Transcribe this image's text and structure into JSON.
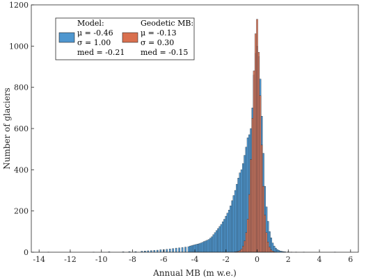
{
  "chart_data": {
    "type": "bar",
    "xlabel": "Annual MB (m w.e.)",
    "ylabel": "Number of glaciers",
    "xlim": [
      -14.5,
      6.5
    ],
    "ylim": [
      0,
      1200
    ],
    "xticks": [
      -14,
      -12,
      -10,
      -8,
      -6,
      -4,
      -2,
      0,
      2,
      4,
      6
    ],
    "yticks": [
      0,
      200,
      400,
      600,
      800,
      1000,
      1200
    ],
    "grid": false,
    "legend_position": "top-left",
    "bin_width": 0.1,
    "series": [
      {
        "name": "Model:",
        "color": "#4f97cf",
        "stats": [
          "μ = -0.46",
          "σ = 1.00",
          "med = -0.21"
        ],
        "bins": [
          [
            -13.4,
            1
          ],
          [
            -12.0,
            1
          ],
          [
            -10.5,
            1
          ],
          [
            -9.5,
            2
          ],
          [
            -8.6,
            2
          ],
          [
            -8.2,
            3
          ],
          [
            -7.8,
            3
          ],
          [
            -7.4,
            5
          ],
          [
            -7.2,
            6
          ],
          [
            -7.0,
            7
          ],
          [
            -6.8,
            8
          ],
          [
            -6.6,
            9
          ],
          [
            -6.4,
            10
          ],
          [
            -6.2,
            12
          ],
          [
            -6.0,
            13
          ],
          [
            -5.8,
            14
          ],
          [
            -5.6,
            16
          ],
          [
            -5.4,
            18
          ],
          [
            -5.2,
            20
          ],
          [
            -5.0,
            21
          ],
          [
            -4.8,
            23
          ],
          [
            -4.6,
            25
          ],
          [
            -4.4,
            27
          ],
          [
            -4.3,
            30
          ],
          [
            -4.2,
            32
          ],
          [
            -4.1,
            34
          ],
          [
            -4.0,
            36
          ],
          [
            -3.9,
            38
          ],
          [
            -3.8,
            40
          ],
          [
            -3.7,
            42
          ],
          [
            -3.6,
            45
          ],
          [
            -3.5,
            48
          ],
          [
            -3.4,
            52
          ],
          [
            -3.3,
            55
          ],
          [
            -3.2,
            58
          ],
          [
            -3.1,
            62
          ],
          [
            -3.0,
            68
          ],
          [
            -2.9,
            75
          ],
          [
            -2.8,
            85
          ],
          [
            -2.7,
            95
          ],
          [
            -2.6,
            105
          ],
          [
            -2.5,
            115
          ],
          [
            -2.4,
            125
          ],
          [
            -2.3,
            135
          ],
          [
            -2.2,
            148
          ],
          [
            -2.1,
            160
          ],
          [
            -2.0,
            175
          ],
          [
            -1.9,
            190
          ],
          [
            -1.8,
            205
          ],
          [
            -1.7,
            225
          ],
          [
            -1.6,
            250
          ],
          [
            -1.5,
            275
          ],
          [
            -1.4,
            300
          ],
          [
            -1.3,
            330
          ],
          [
            -1.2,
            360
          ],
          [
            -1.1,
            385
          ],
          [
            -1.0,
            400
          ],
          [
            -0.9,
            430
          ],
          [
            -0.8,
            470
          ],
          [
            -0.7,
            510
          ],
          [
            -0.6,
            555
          ],
          [
            -0.5,
            570
          ],
          [
            -0.4,
            600
          ],
          [
            -0.3,
            700
          ],
          [
            -0.2,
            860
          ],
          [
            -0.1,
            965
          ],
          [
            0.0,
            1000
          ],
          [
            0.1,
            950
          ],
          [
            0.2,
            840
          ],
          [
            0.3,
            660
          ],
          [
            0.4,
            480
          ],
          [
            0.5,
            320
          ],
          [
            0.6,
            220
          ],
          [
            0.7,
            150
          ],
          [
            0.8,
            100
          ],
          [
            0.9,
            70
          ],
          [
            1.0,
            45
          ],
          [
            1.1,
            30
          ],
          [
            1.2,
            20
          ],
          [
            1.3,
            13
          ],
          [
            1.4,
            9
          ],
          [
            1.5,
            6
          ],
          [
            1.6,
            4
          ],
          [
            1.7,
            3
          ],
          [
            1.8,
            2
          ],
          [
            2.0,
            2
          ],
          [
            2.2,
            1
          ],
          [
            2.5,
            1
          ],
          [
            3.0,
            1
          ],
          [
            5.0,
            1
          ]
        ]
      },
      {
        "name": "Geodetic MB:",
        "color": "#d9704f",
        "stats": [
          "μ = -0.13",
          "σ = 0.30",
          "med = -0.15"
        ],
        "bins": [
          [
            -1.4,
            2
          ],
          [
            -1.3,
            3
          ],
          [
            -1.2,
            5
          ],
          [
            -1.1,
            8
          ],
          [
            -1.0,
            15
          ],
          [
            -0.9,
            30
          ],
          [
            -0.8,
            55
          ],
          [
            -0.7,
            95
          ],
          [
            -0.6,
            160
          ],
          [
            -0.5,
            280
          ],
          [
            -0.4,
            450
          ],
          [
            -0.3,
            650
          ],
          [
            -0.2,
            880
          ],
          [
            -0.1,
            1060
          ],
          [
            0.0,
            1130
          ],
          [
            0.1,
            970
          ],
          [
            0.2,
            760
          ],
          [
            0.3,
            520
          ],
          [
            0.4,
            320
          ],
          [
            0.5,
            180
          ],
          [
            0.6,
            95
          ],
          [
            0.7,
            50
          ],
          [
            0.8,
            25
          ],
          [
            0.9,
            12
          ],
          [
            1.0,
            6
          ],
          [
            1.1,
            3
          ],
          [
            1.2,
            1
          ]
        ]
      }
    ]
  }
}
